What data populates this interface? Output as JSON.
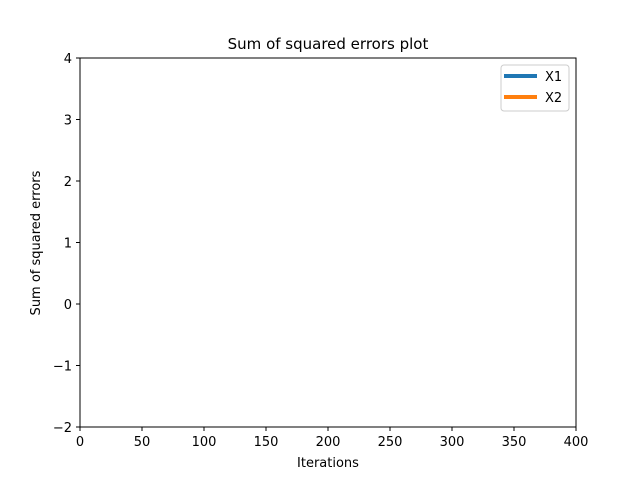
{
  "chart_data": {
    "type": "line",
    "title": "Sum of squared errors plot",
    "xlabel": "Iterations",
    "ylabel": "Sum of squared errors",
    "xlim": [
      0,
      400
    ],
    "ylim": [
      -2,
      4
    ],
    "xticks": [
      0,
      50,
      100,
      150,
      200,
      250,
      300,
      350,
      400
    ],
    "yticks": [
      -2,
      -1,
      0,
      1,
      2,
      3,
      4
    ],
    "xtick_labels": [
      "0",
      "50",
      "100",
      "150",
      "200",
      "250",
      "300",
      "350",
      "400"
    ],
    "ytick_labels": [
      "−2",
      "−1",
      "0",
      "1",
      "2",
      "3",
      "4"
    ],
    "grid": false,
    "legend_position": "top-right",
    "series": [
      {
        "name": "X1",
        "color": "#1f77b4",
        "values": []
      },
      {
        "name": "X2",
        "color": "#ff7f0e",
        "values": []
      }
    ]
  }
}
